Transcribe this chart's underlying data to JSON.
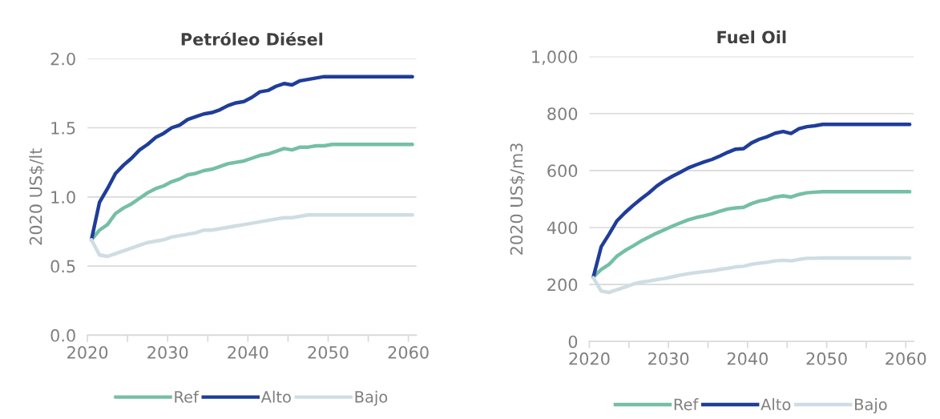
{
  "chart_data": [
    {
      "type": "line",
      "title": "Petróleo Diésel",
      "ylabel": "2020 US$/lt",
      "x": [
        2020.5,
        2021.5,
        2022.5,
        2023.5,
        2024.5,
        2025.5,
        2026.5,
        2027.5,
        2028.5,
        2029.5,
        2030.5,
        2031.5,
        2032.5,
        2033.5,
        2034.5,
        2035.5,
        2036.5,
        2037.5,
        2038.5,
        2039.5,
        2040.5,
        2041.5,
        2042.5,
        2043.5,
        2044.5,
        2045.5,
        2046.5,
        2047.5,
        2048.5,
        2049.5,
        2050.5,
        2051.5,
        2052.5,
        2053.5,
        2054.5,
        2055.5,
        2056.5,
        2057.5,
        2058.5,
        2059.5,
        2060.5
      ],
      "series": [
        {
          "name": "Ref",
          "color": "#75bfa5",
          "values": [
            0.69,
            0.76,
            0.8,
            0.88,
            0.92,
            0.95,
            0.99,
            1.03,
            1.06,
            1.08,
            1.11,
            1.13,
            1.16,
            1.17,
            1.19,
            1.2,
            1.22,
            1.24,
            1.25,
            1.26,
            1.28,
            1.3,
            1.31,
            1.33,
            1.35,
            1.34,
            1.36,
            1.36,
            1.37,
            1.37,
            1.38,
            1.38,
            1.38,
            1.38,
            1.38,
            1.38,
            1.38,
            1.38,
            1.38,
            1.38,
            1.38
          ]
        },
        {
          "name": "Alto",
          "color": "#1f3d99",
          "values": [
            0.69,
            0.96,
            1.06,
            1.17,
            1.23,
            1.28,
            1.34,
            1.38,
            1.43,
            1.46,
            1.5,
            1.52,
            1.56,
            1.58,
            1.6,
            1.61,
            1.63,
            1.66,
            1.68,
            1.69,
            1.72,
            1.76,
            1.77,
            1.8,
            1.82,
            1.81,
            1.84,
            1.85,
            1.86,
            1.87,
            1.87,
            1.87,
            1.87,
            1.87,
            1.87,
            1.87,
            1.87,
            1.87,
            1.87,
            1.87,
            1.87
          ]
        },
        {
          "name": "Bajo",
          "color": "#cfdde3",
          "values": [
            0.69,
            0.58,
            0.57,
            0.59,
            0.61,
            0.63,
            0.65,
            0.67,
            0.68,
            0.69,
            0.71,
            0.72,
            0.73,
            0.74,
            0.76,
            0.76,
            0.77,
            0.78,
            0.79,
            0.8,
            0.81,
            0.82,
            0.83,
            0.84,
            0.85,
            0.85,
            0.86,
            0.87,
            0.87,
            0.87,
            0.87,
            0.87,
            0.87,
            0.87,
            0.87,
            0.87,
            0.87,
            0.87,
            0.87,
            0.87,
            0.87
          ]
        }
      ],
      "xlim": [
        2020,
        2061
      ],
      "xticks": [
        2020,
        {
          "value": 2025,
          "label": null
        },
        2030,
        {
          "value": 2035,
          "label": null
        },
        2040,
        {
          "value": 2045,
          "label": null
        },
        2050,
        {
          "value": 2055,
          "label": null
        },
        2060
      ],
      "ylim": [
        0,
        2.0
      ],
      "yticks": [
        {
          "value": 0,
          "label": "0.0"
        },
        {
          "value": 0.5,
          "label": "0.5"
        },
        {
          "value": 1.0,
          "label": "1.0"
        },
        {
          "value": 1.5,
          "label": "1.5"
        },
        {
          "value": 2.0,
          "label": "2.0"
        }
      ],
      "grid": "y",
      "legend": "bottom",
      "marker": "none",
      "line_style": "solid"
    },
    {
      "type": "line",
      "title": "Fuel Oil",
      "ylabel": "2020 US$/m3",
      "x": [
        2020.5,
        2021.5,
        2022.5,
        2023.5,
        2024.5,
        2025.5,
        2026.5,
        2027.5,
        2028.5,
        2029.5,
        2030.5,
        2031.5,
        2032.5,
        2033.5,
        2034.5,
        2035.5,
        2036.5,
        2037.5,
        2038.5,
        2039.5,
        2040.5,
        2041.5,
        2042.5,
        2043.5,
        2044.5,
        2045.5,
        2046.5,
        2047.5,
        2048.5,
        2049.5,
        2050.5,
        2051.5,
        2052.5,
        2053.5,
        2054.5,
        2055.5,
        2056.5,
        2057.5,
        2058.5,
        2059.5,
        2060.5
      ],
      "series": [
        {
          "name": "Ref",
          "color": "#75bfa5",
          "values": [
            226,
            253,
            271,
            300,
            319,
            335,
            352,
            366,
            380,
            392,
            405,
            416,
            427,
            435,
            441,
            448,
            457,
            465,
            469,
            471,
            484,
            493,
            498,
            507,
            511,
            507,
            516,
            522,
            524,
            526,
            526,
            526,
            526,
            526,
            526,
            526,
            526,
            526,
            526,
            526,
            526
          ]
        },
        {
          "name": "Alto",
          "color": "#1f3d99",
          "values": [
            226,
            333,
            377,
            424,
            452,
            477,
            500,
            521,
            545,
            564,
            580,
            594,
            609,
            620,
            630,
            639,
            651,
            664,
            675,
            677,
            697,
            710,
            719,
            731,
            737,
            730,
            747,
            754,
            757,
            762,
            762,
            762,
            762,
            762,
            762,
            762,
            762,
            762,
            762,
            762,
            762
          ]
        },
        {
          "name": "Bajo",
          "color": "#cfdde3",
          "values": [
            224,
            177,
            172,
            182,
            191,
            201,
            208,
            212,
            217,
            221,
            227,
            233,
            238,
            242,
            245,
            248,
            253,
            257,
            262,
            264,
            271,
            275,
            278,
            283,
            285,
            283,
            288,
            292,
            292,
            293,
            293,
            293,
            293,
            293,
            293,
            293,
            293,
            293,
            293,
            293,
            293
          ]
        }
      ],
      "xlim": [
        2020,
        2061
      ],
      "xticks": [
        2020,
        {
          "value": 2025,
          "label": null
        },
        2030,
        {
          "value": 2035,
          "label": null
        },
        2040,
        {
          "value": 2045,
          "label": null
        },
        2050,
        {
          "value": 2055,
          "label": null
        },
        2060
      ],
      "ylim": [
        0,
        1000
      ],
      "yticks": [
        0,
        200,
        400,
        600,
        800,
        {
          "value": 1000,
          "label": "1,000"
        }
      ],
      "grid": "y",
      "legend": "bottom",
      "marker": "none",
      "line_style": "solid"
    }
  ]
}
